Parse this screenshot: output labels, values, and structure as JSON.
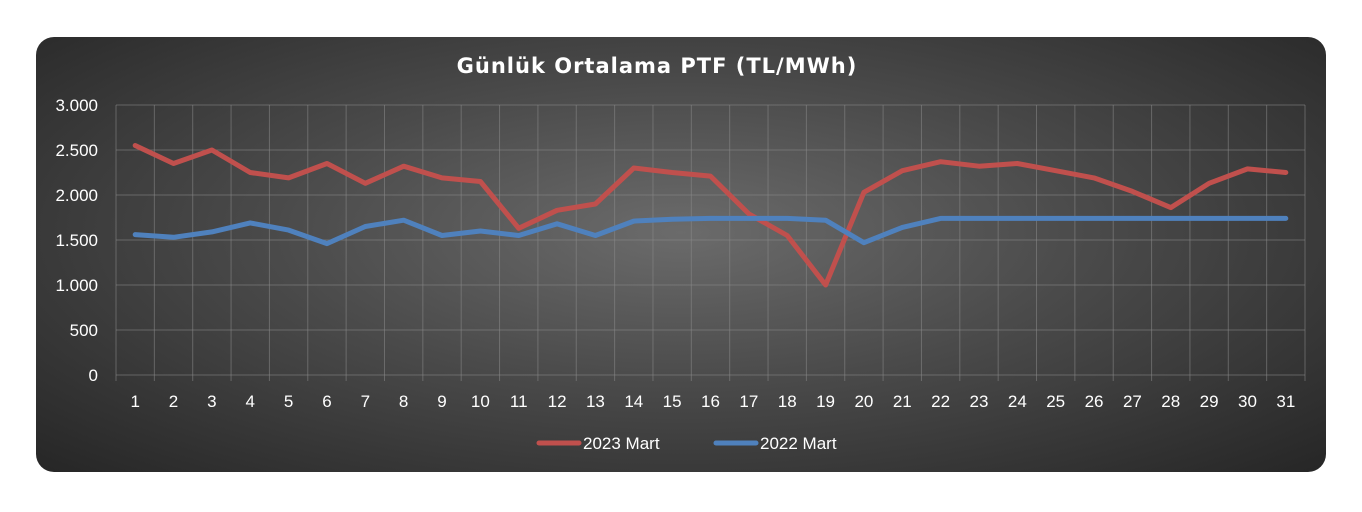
{
  "chart_data": {
    "type": "line",
    "title": "Günlük Ortalama PTF (TL/MWh)",
    "xlabel": "",
    "ylabel": "",
    "x": [
      1,
      2,
      3,
      4,
      5,
      6,
      7,
      8,
      9,
      10,
      11,
      12,
      13,
      14,
      15,
      16,
      17,
      18,
      19,
      20,
      21,
      22,
      23,
      24,
      25,
      26,
      27,
      28,
      29,
      30,
      31
    ],
    "x_tick_labels": [
      "1",
      "2",
      "3",
      "4",
      "5",
      "6",
      "7",
      "8",
      "9",
      "10",
      "11",
      "12",
      "13",
      "14",
      "15",
      "16",
      "17",
      "18",
      "19",
      "20",
      "21",
      "22",
      "23",
      "24",
      "25",
      "26",
      "27",
      "28",
      "29",
      "30",
      "31"
    ],
    "y_tick_labels": [
      "0",
      "500",
      "1.000",
      "1.500",
      "2.000",
      "2.500",
      "3.000"
    ],
    "y_ticks": [
      0,
      500,
      1000,
      1500,
      2000,
      2500,
      3000
    ],
    "ylim": [
      0,
      3000
    ],
    "grid": true,
    "legend_position": "bottom",
    "series": [
      {
        "name": "2023 Mart",
        "color": "#c0504d",
        "values": [
          2550,
          2350,
          2500,
          2250,
          2190,
          2350,
          2130,
          2320,
          2190,
          2150,
          1630,
          1830,
          1900,
          2300,
          2250,
          2210,
          1790,
          1550,
          1000,
          2030,
          2270,
          2370,
          2320,
          2350,
          2270,
          2190,
          2040,
          1860,
          2130,
          2290,
          2250
        ]
      },
      {
        "name": "2022 Mart",
        "color": "#4f81bd",
        "values": [
          1560,
          1530,
          1590,
          1690,
          1610,
          1460,
          1650,
          1720,
          1550,
          1600,
          1550,
          1680,
          1550,
          1710,
          1730,
          1740,
          1740,
          1740,
          1720,
          1470,
          1640,
          1740,
          1740,
          1740,
          1740,
          1740,
          1740,
          1740,
          1740,
          1740,
          1740
        ]
      }
    ]
  }
}
